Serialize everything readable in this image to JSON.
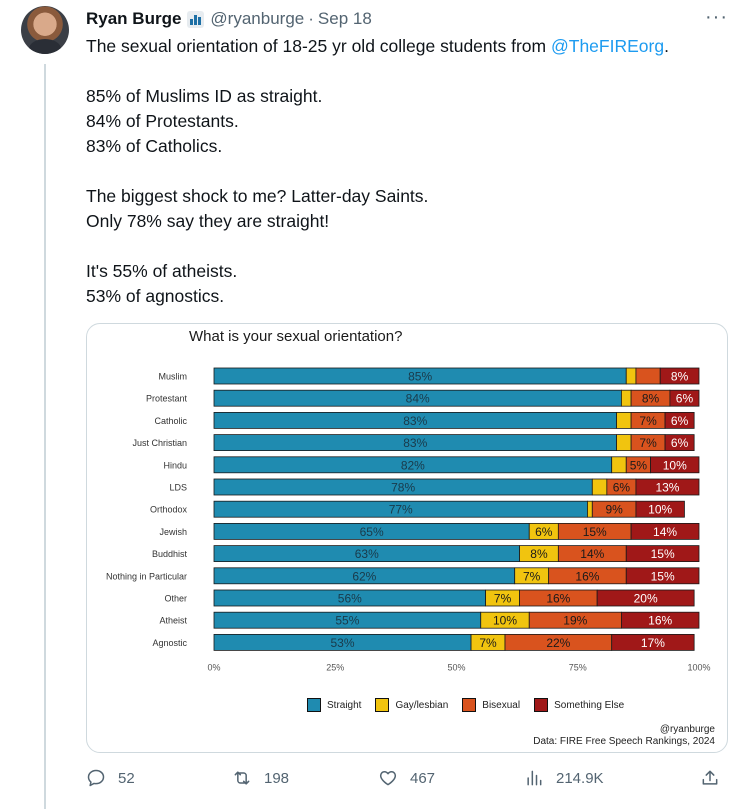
{
  "tweet": {
    "author_name": "Ryan Burge",
    "author_handle": "@ryanburge",
    "separator": "·",
    "date": "Sep 18",
    "more_label": "···",
    "text_line1_prefix": "The sexual orientation of 18-25 yr old college students from ",
    "text_line1_mention": "@TheFIREorg",
    "text_line1_suffix": ".",
    "text_lines_block2": [
      "85% of Muslims ID as straight.",
      "84% of Protestants.",
      "83% of Catholics."
    ],
    "text_lines_block3": [
      "The biggest shock to me? Latter-day Saints.",
      "Only 78% say they are straight!"
    ],
    "text_lines_block4": [
      "It's 55% of atheists.",
      "53% of agnostics."
    ]
  },
  "actions": {
    "replies": "52",
    "retweets": "198",
    "likes": "467",
    "views": "214.9K"
  },
  "colors": {
    "straight": "#1f8bb0",
    "gay_lesbian": "#f1c40f",
    "bisexual": "#d9531e",
    "something_else": "#a01818",
    "accent": "#1d9bf0"
  },
  "chart_data": {
    "type": "bar",
    "orientation": "horizontal-stacked-100",
    "title": "What is your sexual orientation?",
    "categories": [
      "Muslim",
      "Protestant",
      "Catholic",
      "Just Christian",
      "Hindu",
      "LDS",
      "Orthodox",
      "Jewish",
      "Buddhist",
      "Nothing in Particular",
      "Other",
      "Atheist",
      "Agnostic"
    ],
    "series": [
      {
        "name": "Straight",
        "values": [
          85,
          84,
          83,
          83,
          82,
          78,
          77,
          65,
          63,
          62,
          56,
          55,
          53
        ]
      },
      {
        "name": "Gay/lesbian",
        "values": [
          2,
          2,
          3,
          3,
          3,
          3,
          1,
          6,
          8,
          7,
          7,
          10,
          7
        ]
      },
      {
        "name": "Bisexual",
        "values": [
          5,
          8,
          7,
          7,
          5,
          6,
          9,
          15,
          14,
          16,
          16,
          19,
          22
        ]
      },
      {
        "name": "Something Else",
        "values": [
          8,
          6,
          6,
          6,
          10,
          13,
          10,
          14,
          15,
          15,
          20,
          16,
          17
        ]
      }
    ],
    "labels": [
      [
        "85%",
        "",
        "",
        "8%"
      ],
      [
        "84%",
        "",
        "8%",
        "6%"
      ],
      [
        "83%",
        "",
        "7%",
        "6%"
      ],
      [
        "83%",
        "",
        "7%",
        "6%"
      ],
      [
        "82%",
        "",
        "5%",
        "10%"
      ],
      [
        "78%",
        "",
        "6%",
        "13%"
      ],
      [
        "77%",
        "",
        "9%",
        "10%"
      ],
      [
        "65%",
        "6%",
        "15%",
        "14%"
      ],
      [
        "63%",
        "8%",
        "14%",
        "15%"
      ],
      [
        "62%",
        "7%",
        "16%",
        "15%"
      ],
      [
        "56%",
        "7%",
        "16%",
        "20%"
      ],
      [
        "55%",
        "10%",
        "19%",
        "16%"
      ],
      [
        "53%",
        "7%",
        "22%",
        "17%"
      ]
    ],
    "x_ticks": [
      "0%",
      "25%",
      "50%",
      "75%",
      "100%"
    ],
    "xlim": [
      0,
      100
    ],
    "legend_position": "bottom",
    "credit_handle": "@ryanburge",
    "credit_source": "Data: FIRE Free Speech Rankings, 2024"
  }
}
